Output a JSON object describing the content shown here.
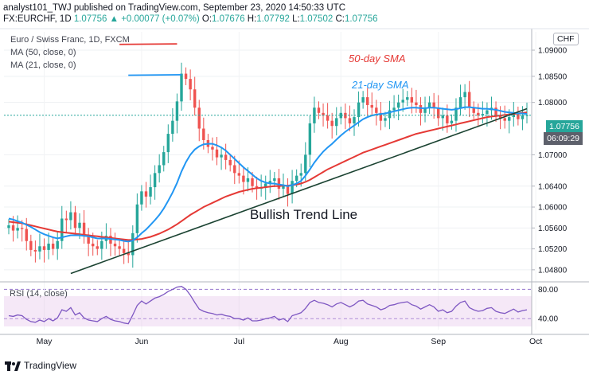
{
  "header": {
    "line1": "analyst101_TWJ published on TradingView.com, September 23, 2020 14:50:33 UTC",
    "symbol": "FX:EURCHF, 1D",
    "last": "1.07756",
    "change": "+0.00077 (+0.07%)",
    "o_label": "O:",
    "o_val": "1.07676",
    "h_label": "H:",
    "h_val": "1.07792",
    "l_label": "L:",
    "l_val": "1.07502",
    "c_label": "C:",
    "c_val": "1.07756"
  },
  "legend": {
    "title": "Euro / Swiss Franc, 1D, FXCM",
    "ma50": "MA (50, close, 0)",
    "ma21": "MA (21, close, 0)"
  },
  "annotations": {
    "sma50": "50-day SMA",
    "sma21": "21-day SMA",
    "trend": "Bullish Trend Line"
  },
  "price_axis": {
    "currency": "CHF",
    "last_price": "1.07756",
    "countdown": "06:09:29"
  },
  "rsi_legend": "RSI (14, close)",
  "footer": {
    "brand": "TradingView"
  },
  "colors": {
    "up": "#26a69a",
    "down": "#ef5350",
    "ma50": "#e53935",
    "ma21": "#2196f3",
    "trend": "#1b4332",
    "rsi": "#7e57c2",
    "last_price_bg": "#26a69a",
    "countdown_bg": "#5d606b"
  },
  "chart_data": [
    {
      "type": "candlestick",
      "x_labels": [
        "May",
        "Jun",
        "Jul",
        "Aug",
        "Sep",
        "Oct"
      ],
      "y_ticks": [
        "1.09000",
        "1.08500",
        "1.08000",
        "1.07000",
        "1.06400",
        "1.06000",
        "1.05600",
        "1.05200",
        "1.04800"
      ],
      "ylim": [
        1.046,
        1.0935
      ],
      "closes": [
        1.0565,
        1.0555,
        1.056,
        1.0558,
        1.0535,
        1.0518,
        1.0515,
        1.0525,
        1.0518,
        1.053,
        1.052,
        1.0535,
        1.0578,
        1.0575,
        1.059,
        1.056,
        1.057,
        1.0545,
        1.053,
        1.0525,
        1.052,
        1.0535,
        1.0545,
        1.053,
        1.0525,
        1.052,
        1.0512,
        1.0508,
        1.055,
        1.0605,
        1.063,
        1.062,
        1.0638,
        1.0665,
        1.068,
        1.0705,
        1.074,
        1.0765,
        1.0802,
        1.0855,
        1.0845,
        1.0825,
        1.079,
        1.075,
        1.0728,
        1.0715,
        1.071,
        1.0695,
        1.07,
        1.069,
        1.068,
        1.0665,
        1.066,
        1.0648,
        1.0655,
        1.064,
        1.0635,
        1.0638,
        1.0645,
        1.065,
        1.0655,
        1.0635,
        1.064,
        1.0625,
        1.065,
        1.066,
        1.0665,
        1.07,
        1.076,
        1.079,
        1.078,
        1.0775,
        1.0765,
        1.0755,
        1.077,
        1.078,
        1.077,
        1.076,
        1.0772,
        1.08,
        1.081,
        1.0795,
        1.079,
        1.078,
        1.0765,
        1.077,
        1.0785,
        1.079,
        1.08,
        1.0805,
        1.081,
        1.08,
        1.0795,
        1.078,
        1.079,
        1.08,
        1.079,
        1.077,
        1.0775,
        1.076,
        1.0765,
        1.079,
        1.081,
        1.082,
        1.079,
        1.078,
        1.0775,
        1.0778,
        1.0785,
        1.079,
        1.0775,
        1.077,
        1.0765,
        1.0772,
        1.078,
        1.0768,
        1.0775,
        1.07756
      ],
      "ma21": [
        1.0578,
        1.0576,
        1.0573,
        1.057,
        1.0566,
        1.0562,
        1.0557,
        1.0552,
        1.0548,
        1.0545,
        1.0542,
        1.054,
        1.0542,
        1.0544,
        1.0546,
        1.0546,
        1.0546,
        1.0545,
        1.0544,
        1.0542,
        1.054,
        1.054,
        1.054,
        1.0539,
        1.0538,
        1.0537,
        1.0535,
        1.0534,
        1.0536,
        1.0542,
        1.055,
        1.0557,
        1.0566,
        1.0575,
        1.0585,
        1.0597,
        1.0612,
        1.0628,
        1.0646,
        1.0668,
        1.0686,
        1.07,
        1.071,
        1.0716,
        1.072,
        1.0721,
        1.0721,
        1.0718,
        1.0714,
        1.0708,
        1.07,
        1.0692,
        1.0684,
        1.0676,
        1.0669,
        1.0662,
        1.0655,
        1.065,
        1.0647,
        1.0645,
        1.0645,
        1.0643,
        1.0642,
        1.064,
        1.0642,
        1.0645,
        1.065,
        1.066,
        1.0672,
        1.0685,
        1.0696,
        1.0706,
        1.0714,
        1.0721,
        1.0729,
        1.0737,
        1.0744,
        1.075,
        1.0756,
        1.0762,
        1.0768,
        1.0772,
        1.0775,
        1.0777,
        1.0778,
        1.0779,
        1.0781,
        1.0783,
        1.0785,
        1.0787,
        1.0789,
        1.079,
        1.079,
        1.0789,
        1.0789,
        1.079,
        1.079,
        1.0789,
        1.0788,
        1.0787,
        1.0786,
        1.0787,
        1.0789,
        1.0791,
        1.0791,
        1.079,
        1.0789,
        1.0788,
        1.0788,
        1.0787,
        1.0786,
        1.0784,
        1.0782,
        1.0781,
        1.078,
        1.0779,
        1.0779,
        1.0778
      ],
      "ma50": [
        1.0572,
        1.0571,
        1.057,
        1.0569,
        1.0567,
        1.0565,
        1.0563,
        1.0561,
        1.0559,
        1.0557,
        1.0555,
        1.0553,
        1.0552,
        1.0551,
        1.055,
        1.0549,
        1.0548,
        1.0547,
        1.0546,
        1.0545,
        1.0544,
        1.0543,
        1.0542,
        1.0541,
        1.054,
        1.0539,
        1.0538,
        1.0537,
        1.0537,
        1.0538,
        1.0539,
        1.0541,
        1.0543,
        1.0546,
        1.0549,
        1.0553,
        1.0557,
        1.0562,
        1.0567,
        1.0573,
        1.0579,
        1.0585,
        1.059,
        1.0595,
        1.06,
        1.0604,
        1.0608,
        1.0612,
        1.0616,
        1.062,
        1.0623,
        1.0626,
        1.0629,
        1.0631,
        1.0633,
        1.0635,
        1.0636,
        1.0637,
        1.0638,
        1.0639,
        1.064,
        1.064,
        1.0641,
        1.0641,
        1.0642,
        1.0643,
        1.0645,
        1.0648,
        1.0652,
        1.0657,
        1.0662,
        1.0667,
        1.0672,
        1.0676,
        1.068,
        1.0684,
        1.0688,
        1.0692,
        1.0696,
        1.07,
        1.0704,
        1.0707,
        1.071,
        1.0713,
        1.0716,
        1.0719,
        1.0722,
        1.0725,
        1.0728,
        1.0731,
        1.0734,
        1.0737,
        1.074,
        1.0742,
        1.0744,
        1.0746,
        1.0748,
        1.075,
        1.0752,
        1.0754,
        1.0756,
        1.0758,
        1.076,
        1.0762,
        1.0764,
        1.0766,
        1.0768,
        1.077,
        1.0772,
        1.0773,
        1.0774,
        1.0775,
        1.0776,
        1.0777,
        1.0778,
        1.0779,
        1.078,
        1.0781
      ],
      "trend_line": {
        "from": [
          14,
          1.0473
        ],
        "to": [
          117,
          1.0788
        ]
      },
      "sma50_marker": {
        "from": [
          25,
          1.0911
        ],
        "to": [
          38,
          1.0912
        ]
      },
      "sma21_marker": {
        "from": [
          27,
          1.0852
        ],
        "to": [
          39,
          1.0853
        ]
      }
    },
    {
      "type": "line",
      "name": "RSI (14, close)",
      "y_ticks": [
        "80.00",
        "40.00"
      ],
      "ylim": [
        25,
        88
      ],
      "values": [
        44,
        43,
        45,
        44,
        39,
        36,
        35,
        38,
        36,
        40,
        37,
        41,
        52,
        50,
        55,
        45,
        48,
        41,
        38,
        37,
        36,
        40,
        43,
        39,
        37,
        36,
        34,
        33,
        45,
        58,
        64,
        60,
        64,
        68,
        70,
        73,
        77,
        80,
        83,
        84,
        80,
        72,
        62,
        53,
        50,
        48,
        47,
        45,
        46,
        44,
        43,
        40,
        40,
        38,
        41,
        37,
        37,
        38,
        40,
        41,
        43,
        38,
        40,
        36,
        44,
        46,
        48,
        54,
        62,
        65,
        62,
        61,
        59,
        56,
        60,
        62,
        59,
        56,
        59,
        64,
        65,
        60,
        58,
        56,
        52,
        54,
        58,
        59,
        61,
        62,
        63,
        59,
        57,
        53,
        56,
        59,
        56,
        50,
        52,
        48,
        50,
        57,
        62,
        64,
        55,
        52,
        50,
        51,
        54,
        55,
        50,
        48,
        47,
        50,
        53,
        49,
        51,
        52
      ]
    }
  ]
}
